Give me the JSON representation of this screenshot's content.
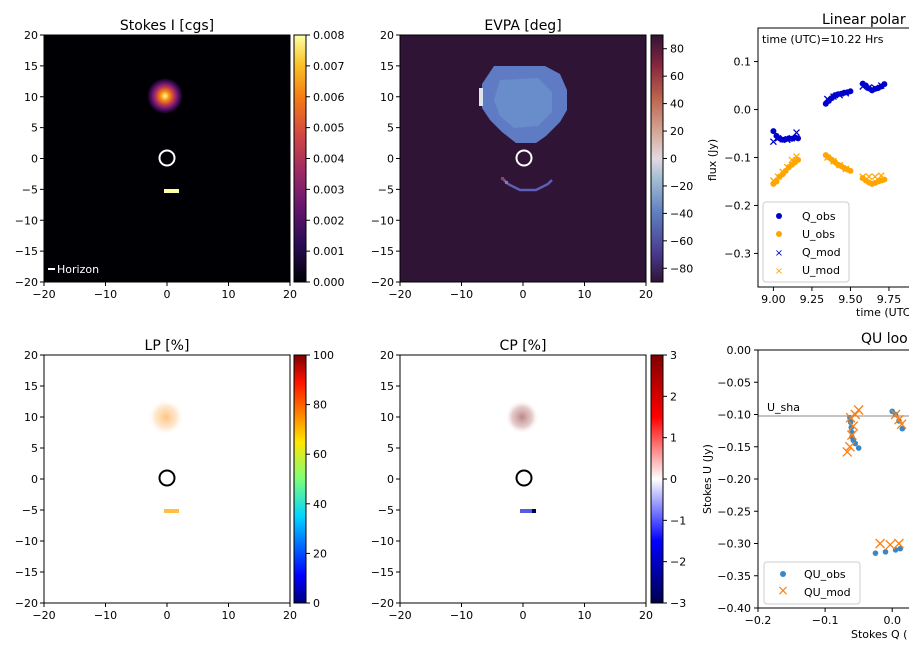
{
  "chart_data": [
    {
      "id": "stokes_i",
      "type": "heatmap",
      "title": "Stokes I [cgs]",
      "xlim": [
        -20,
        20
      ],
      "ylim": [
        -20,
        20
      ],
      "xticks": [
        -20,
        -10,
        0,
        10,
        20
      ],
      "yticks": [
        -20,
        -15,
        -10,
        -5,
        0,
        5,
        10,
        15,
        20
      ],
      "colormap": "inferno",
      "colorbar": {
        "range": [
          0,
          0.008
        ],
        "ticks": [
          "0.000",
          "0.001",
          "0.002",
          "0.003",
          "0.004",
          "0.005",
          "0.006",
          "0.007",
          "0.008"
        ]
      },
      "source": {
        "x": -0.3,
        "y": 9.8,
        "peak": 0.0075
      },
      "bar_marker": {
        "x1": 0,
        "x2": 2,
        "y": -5.3
      },
      "circle": {
        "x": 0,
        "y": 0,
        "r": 1.2
      },
      "annotation": "Horizon"
    },
    {
      "id": "evpa",
      "type": "heatmap",
      "title": "EVPA [deg]",
      "xlim": [
        -20,
        20
      ],
      "ylim": [
        -20,
        20
      ],
      "xticks": [
        -20,
        -10,
        0,
        10,
        20
      ],
      "yticks": [
        -20,
        -15,
        -10,
        -5,
        0,
        5,
        10,
        15,
        20
      ],
      "colormap": "twilight",
      "colorbar": {
        "range": [
          -90,
          90
        ],
        "ticks": [
          "−80",
          "−60",
          "−40",
          "−20",
          "0",
          "20",
          "40",
          "60",
          "80"
        ]
      },
      "circle": {
        "x": 0,
        "y": 0,
        "r": 1.2
      }
    },
    {
      "id": "linear_pol",
      "type": "scatter",
      "title": "Linear polar",
      "xlabel": "time (UTC",
      "ylabel": "flux (Jy)",
      "xlim": [
        8.9,
        9.88
      ],
      "ylim": [
        -0.37,
        0.17
      ],
      "xticks": [
        "9.00",
        "9.25",
        "9.50",
        "9.75"
      ],
      "yticks": [
        "0.1",
        "0.0",
        "−0.1",
        "−0.2",
        "−0.3"
      ],
      "annotation": "time (UTC)=10.22 Hrs",
      "legend": [
        "Q_obs",
        "U_obs",
        "Q_mod",
        "U_mod"
      ],
      "series": [
        {
          "name": "Q_obs",
          "marker": "dot",
          "color": "#0000cc",
          "x": [
            9.0,
            9.02,
            9.04,
            9.06,
            9.08,
            9.1,
            9.12,
            9.14,
            9.16,
            9.34,
            9.36,
            9.38,
            9.4,
            9.42,
            9.44,
            9.46,
            9.48,
            9.5,
            9.58,
            9.6,
            9.62,
            9.64,
            9.66,
            9.68,
            9.7,
            9.72
          ],
          "y": [
            -0.045,
            -0.055,
            -0.06,
            -0.063,
            -0.062,
            -0.06,
            -0.061,
            -0.058,
            -0.06,
            0.012,
            0.018,
            0.024,
            0.03,
            0.032,
            0.033,
            0.035,
            0.036,
            0.038,
            0.054,
            0.05,
            0.044,
            0.04,
            0.043,
            0.045,
            0.048,
            0.053
          ]
        },
        {
          "name": "U_obs",
          "marker": "dot",
          "color": "#ffa500",
          "x": [
            9.0,
            9.02,
            9.04,
            9.06,
            9.08,
            9.1,
            9.12,
            9.14,
            9.16,
            9.34,
            9.36,
            9.38,
            9.4,
            9.42,
            9.44,
            9.46,
            9.48,
            9.5,
            9.58,
            9.6,
            9.62,
            9.64,
            9.66,
            9.68,
            9.7,
            9.72
          ],
          "y": [
            -0.155,
            -0.15,
            -0.14,
            -0.135,
            -0.128,
            -0.12,
            -0.115,
            -0.11,
            -0.105,
            -0.095,
            -0.1,
            -0.105,
            -0.11,
            -0.115,
            -0.118,
            -0.122,
            -0.125,
            -0.128,
            -0.143,
            -0.148,
            -0.152,
            -0.155,
            -0.153,
            -0.15,
            -0.148,
            -0.146
          ]
        },
        {
          "name": "Q_mod",
          "marker": "x",
          "color": "#0000cc",
          "x": [
            9.0,
            9.03,
            9.06,
            9.09,
            9.12,
            9.15,
            9.35,
            9.39,
            9.43,
            9.47,
            9.58,
            9.62,
            9.66,
            9.7
          ],
          "y": [
            -0.067,
            -0.06,
            -0.062,
            -0.063,
            -0.06,
            -0.048,
            0.022,
            0.027,
            0.03,
            0.034,
            0.048,
            0.046,
            0.045,
            0.05
          ]
        },
        {
          "name": "U_mod",
          "marker": "x",
          "color": "#ffa500",
          "x": [
            9.0,
            9.03,
            9.06,
            9.09,
            9.12,
            9.15,
            9.35,
            9.39,
            9.43,
            9.47,
            9.58,
            9.62,
            9.66,
            9.7
          ],
          "y": [
            -0.148,
            -0.14,
            -0.13,
            -0.12,
            -0.105,
            -0.098,
            -0.1,
            -0.108,
            -0.116,
            -0.124,
            -0.14,
            -0.14,
            -0.14,
            -0.138
          ]
        }
      ]
    },
    {
      "id": "lp",
      "type": "heatmap",
      "title": "LP [%]",
      "xlim": [
        -20,
        20
      ],
      "ylim": [
        -20,
        20
      ],
      "xticks": [
        -20,
        -10,
        0,
        10,
        20
      ],
      "yticks": [
        -20,
        -15,
        -10,
        -5,
        0,
        5,
        10,
        15,
        20
      ],
      "colormap": "jet",
      "colorbar": {
        "range": [
          0,
          100
        ],
        "ticks": [
          "0",
          "20",
          "40",
          "60",
          "80",
          "100"
        ]
      },
      "circle": {
        "x": 0,
        "y": 0,
        "r": 1.2
      }
    },
    {
      "id": "cp",
      "type": "heatmap",
      "title": "CP [%]",
      "xlim": [
        -20,
        20
      ],
      "ylim": [
        -20,
        20
      ],
      "xticks": [
        -20,
        -10,
        0,
        10,
        20
      ],
      "yticks": [
        -20,
        -15,
        -10,
        -5,
        0,
        5,
        10,
        15,
        20
      ],
      "colormap": "seismic",
      "colorbar": {
        "range": [
          -3,
          3
        ],
        "ticks": [
          "−3",
          "−2",
          "−1",
          "0",
          "1",
          "2",
          "3"
        ]
      },
      "circle": {
        "x": 0,
        "y": 0,
        "r": 1.2
      }
    },
    {
      "id": "qu_loop",
      "type": "scatter",
      "title": "QU loo",
      "xlabel": "Stokes Q (",
      "ylabel": "Stokes U (Jy)",
      "xlim": [
        -0.2,
        0.025
      ],
      "ylim": [
        -0.4,
        0.0
      ],
      "xticks": [
        "−0.2",
        "−0.1",
        "0.0"
      ],
      "yticks": [
        "0.00",
        "−0.05",
        "−0.10",
        "−0.15",
        "−0.20",
        "−0.25",
        "−0.30",
        "−0.35",
        "−0.40"
      ],
      "hline": {
        "y": -0.103,
        "label": "U_sha"
      },
      "legend": [
        "QU_obs",
        "QU_mod"
      ],
      "series": [
        {
          "name": "QU_obs",
          "marker": "dot",
          "color": "#3b87c3",
          "x": [
            -0.063,
            -0.062,
            -0.061,
            -0.06,
            -0.06,
            -0.058,
            -0.055,
            -0.05,
            0.0,
            0.005,
            0.01,
            0.015,
            -0.025,
            -0.01,
            0.005,
            0.012
          ],
          "y": [
            -0.105,
            -0.112,
            -0.12,
            -0.128,
            -0.135,
            -0.14,
            -0.145,
            -0.152,
            -0.095,
            -0.1,
            -0.11,
            -0.122,
            -0.315,
            -0.313,
            -0.31,
            -0.308
          ]
        },
        {
          "name": "QU_mod",
          "marker": "x",
          "color": "#ff7f0e",
          "x": [
            -0.067,
            -0.063,
            -0.06,
            -0.058,
            -0.055,
            -0.05,
            -0.062,
            0.005,
            0.01,
            0.014,
            -0.018,
            -0.003,
            0.01
          ],
          "y": [
            -0.158,
            -0.15,
            -0.132,
            -0.118,
            -0.1,
            -0.093,
            -0.105,
            -0.1,
            -0.108,
            -0.115,
            -0.3,
            -0.302,
            -0.3
          ]
        }
      ]
    }
  ]
}
